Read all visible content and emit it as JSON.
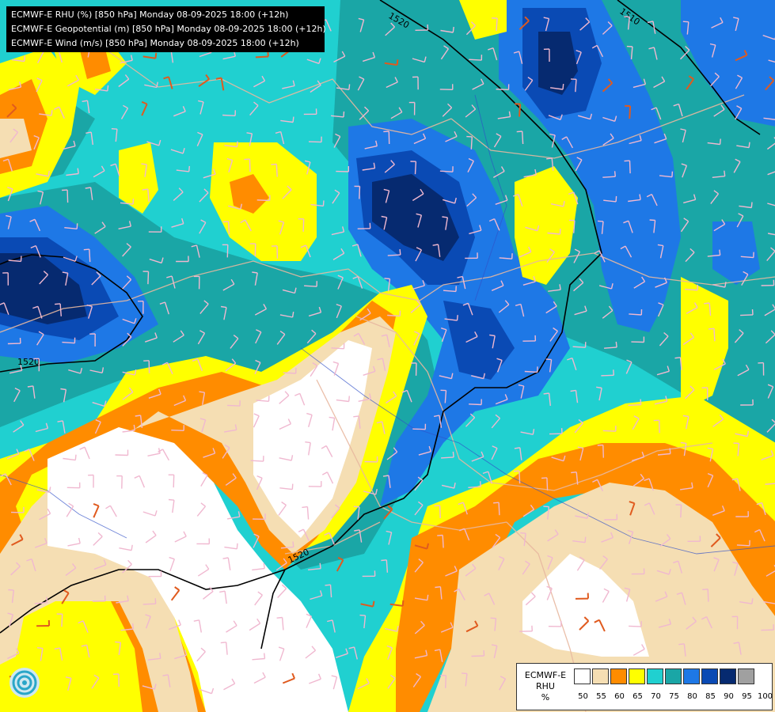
{
  "header": {
    "line1": "ECMWF-E RHU (%) [850 hPa] Monday 08-09-2025 18:00 (+12h)",
    "line2": "ECMWF-E Geopotential (m) [850 hPa] Monday 08-09-2025 18:00 (+12h)",
    "line3": "ECMWF-E Wind (m/s) [850 hPa] Monday 08-09-2025 18:00 (+12h)"
  },
  "isohypse_labels": [
    "1520",
    "1520",
    "1520",
    "1510"
  ],
  "legend": {
    "title_line1": "ECMWF-E",
    "title_line2": "RHU",
    "title_line3": "%",
    "ticks": [
      "50",
      "55",
      "60",
      "65",
      "70",
      "75",
      "80",
      "85",
      "90",
      "95",
      "100"
    ],
    "colors": [
      "#ffffff",
      "#f5deb3",
      "#ff8c00",
      "#ffff00",
      "#20d0d0",
      "#1aa6a6",
      "#1e78e6",
      "#0a4ab4",
      "#062a70",
      "#a0a0a0",
      "#505050"
    ]
  },
  "logo": {
    "icon": "ecmwf-logo-icon"
  }
}
